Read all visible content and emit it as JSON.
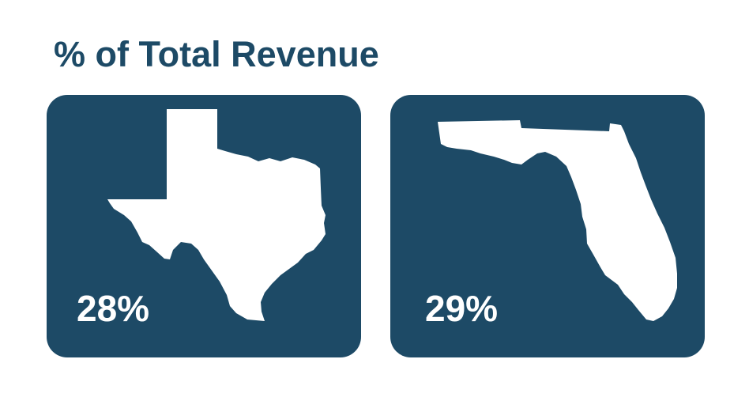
{
  "title": "% of Total Revenue",
  "colors": {
    "card_background": "#1d4a66",
    "title": "#1d4a66",
    "shape_fill": "#ffffff",
    "value_text": "#ffffff"
  },
  "chart_data": {
    "type": "table",
    "title": "% of Total Revenue",
    "items": [
      {
        "icon": "texas-map-icon",
        "label": "28%",
        "value": 28,
        "unit": "%"
      },
      {
        "icon": "florida-map-icon",
        "label": "29%",
        "value": 29,
        "unit": "%"
      }
    ]
  }
}
